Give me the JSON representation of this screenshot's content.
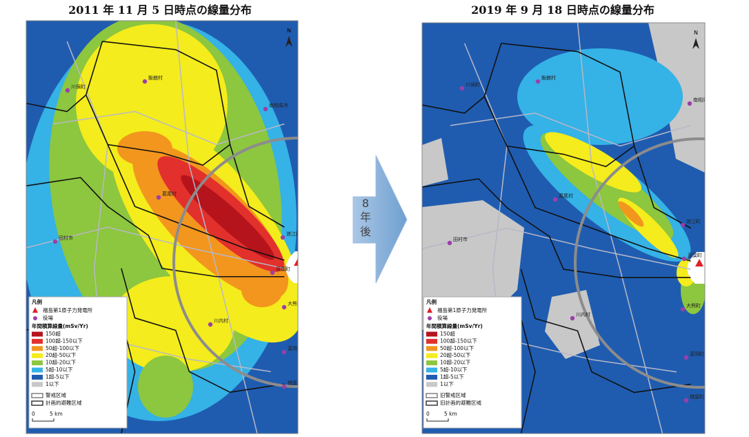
{
  "arrow": {
    "lines": [
      "8",
      "年",
      "後"
    ]
  },
  "maps": [
    {
      "title": "2011 年 11 月 5 日時点の線量分布",
      "north": "N",
      "places": [
        "飯舘村",
        "川俣町",
        "南相馬市",
        "葛尾村",
        "浪江町",
        "双葉町",
        "大熊町",
        "富岡町",
        "川内村",
        "楢葉町",
        "田村市"
      ],
      "legend": {
        "title": "凡例",
        "plant": "福島第1原子力発電所",
        "office": "役場",
        "dose_title": "年間積算線量(mSv/Yr)",
        "classes": [
          {
            "label": "150超",
            "color": "#b5141c"
          },
          {
            "label": "100超-150以下",
            "color": "#e2302c"
          },
          {
            "label": "50超-100以下",
            "color": "#f2961e"
          },
          {
            "label": "20超-50以下",
            "color": "#f4ec1c"
          },
          {
            "label": "10超-20以下",
            "color": "#8dc63f"
          },
          {
            "label": "5超-10以下",
            "color": "#35b2e6"
          },
          {
            "label": "1超-5以下",
            "color": "#1f5cb0"
          },
          {
            "label": "1以下",
            "color": "#c8c8c8"
          }
        ],
        "zones": [
          "警戒区域",
          "計画的避難区域"
        ],
        "scale": [
          "0",
          "5 km"
        ]
      }
    },
    {
      "title": "2019 年 9 月 18 日時点の線量分布",
      "north": "N",
      "places": [
        "飯舘村",
        "川俣町",
        "南相馬市",
        "葛尾村",
        "浪江町",
        "双葉町",
        "大熊町",
        "富岡町",
        "川内村",
        "楢葉町",
        "田村市"
      ],
      "legend": {
        "title": "凡例",
        "plant": "福島第1原子力発電所",
        "office": "役場",
        "dose_title": "年間積算線量(mSv/Yr)",
        "classes": [
          {
            "label": "150超",
            "color": "#b5141c"
          },
          {
            "label": "100超-150以下",
            "color": "#e2302c"
          },
          {
            "label": "50超-100以下",
            "color": "#f2961e"
          },
          {
            "label": "20超-50以下",
            "color": "#f4ec1c"
          },
          {
            "label": "10超-20以下",
            "color": "#8dc63f"
          },
          {
            "label": "5超-10以下",
            "color": "#35b2e6"
          },
          {
            "label": "1超-5以下",
            "color": "#1f5cb0"
          },
          {
            "label": "1以下",
            "color": "#c8c8c8"
          }
        ],
        "zones": [
          "旧警戒区域",
          "旧計画的避難区域"
        ],
        "scale": [
          "0",
          "5 km"
        ]
      }
    }
  ]
}
